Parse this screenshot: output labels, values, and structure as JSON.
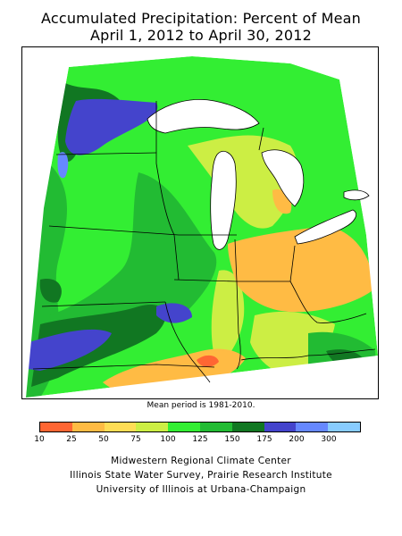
{
  "title_line1": "Accumulated Precipitation: Percent of Mean",
  "title_line2": "April 1, 2012 to April 30, 2012",
  "note": "Mean period is 1981-2010.",
  "legend": {
    "tick_labels": [
      "10",
      "25",
      "50",
      "75",
      "100",
      "125",
      "150",
      "175",
      "200",
      "300"
    ],
    "colors": [
      "#ff6633",
      "#ffbb44",
      "#ffdd55",
      "#ccee44",
      "#33ee33",
      "#22bb33",
      "#117722",
      "#4444cc",
      "#6688ff",
      "#88ccff"
    ]
  },
  "credits": [
    "Midwestern Regional Climate Center",
    "Illinois State Water Survey, Prairie Research Institute",
    "University of Illinois at Urbana-Champaign"
  ]
}
